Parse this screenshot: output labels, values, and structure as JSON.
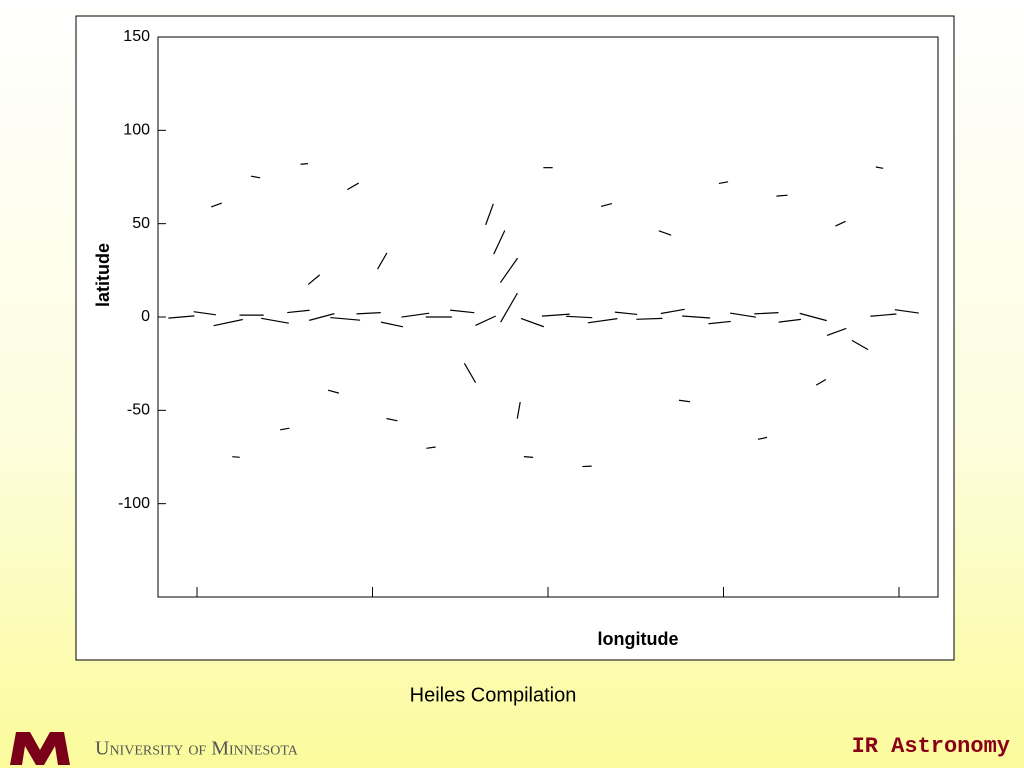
{
  "chart_data": {
    "type": "vector",
    "xlabel": "longitude",
    "ylabel": "latitude",
    "xlim": [
      -20,
      380
    ],
    "xticks": [
      0,
      90,
      180,
      270,
      360
    ],
    "ylim": [
      -150,
      150
    ],
    "yticks": [
      150,
      100,
      50,
      0,
      -50,
      -100
    ],
    "color": "#000000",
    "x": [
      -8,
      4,
      16,
      28,
      40,
      52,
      64,
      76,
      88,
      100,
      112,
      124,
      136,
      148,
      160,
      172,
      184,
      196,
      208,
      220,
      232,
      244,
      256,
      268,
      280,
      292,
      304,
      316,
      328,
      340,
      352,
      364,
      10,
      30,
      55,
      80,
      95,
      70,
      45,
      20,
      150,
      155,
      160,
      140,
      165,
      180,
      210,
      240,
      270,
      300,
      330,
      350,
      120,
      100,
      60,
      200,
      250,
      320,
      290,
      170
    ],
    "y": [
      0,
      2,
      -3,
      1,
      -2,
      3,
      0,
      -1,
      2,
      -4,
      1,
      0,
      3,
      -2,
      5,
      -3,
      1,
      0,
      -2,
      2,
      -1,
      3,
      0,
      -3,
      1,
      2,
      -2,
      0,
      -8,
      -15,
      1,
      3,
      60,
      75,
      82,
      70,
      30,
      -40,
      -60,
      -75,
      55,
      40,
      25,
      -30,
      -50,
      80,
      60,
      45,
      72,
      65,
      50,
      80,
      -70,
      -55,
      20,
      -80,
      -45,
      -35,
      -65,
      -75
    ],
    "angle": [
      5,
      -8,
      12,
      0,
      -10,
      6,
      15,
      -5,
      3,
      -12,
      8,
      0,
      -6,
      25,
      60,
      -20,
      4,
      -3,
      8,
      -6,
      2,
      10,
      -4,
      6,
      -9,
      3,
      7,
      -15,
      20,
      -30,
      5,
      -8,
      20,
      -10,
      5,
      30,
      60,
      -15,
      10,
      -5,
      70,
      65,
      55,
      -60,
      80,
      0,
      15,
      -20,
      10,
      5,
      25,
      -10,
      8,
      -12,
      40,
      3,
      -8,
      30,
      12,
      -5
    ],
    "length": [
      14,
      12,
      16,
      13,
      15,
      12,
      14,
      16,
      13,
      12,
      15,
      14,
      13,
      12,
      18,
      13,
      15,
      14,
      16,
      12,
      14,
      13,
      15,
      12,
      14,
      13,
      12,
      15,
      11,
      10,
      14,
      13,
      6,
      5,
      4,
      7,
      10,
      6,
      5,
      4,
      12,
      14,
      16,
      12,
      9,
      5,
      6,
      7,
      5,
      6,
      6,
      4,
      5,
      6,
      8,
      5,
      6,
      6,
      5,
      5
    ]
  },
  "caption": "Heiles Compilation",
  "footer": {
    "university": "University of Minnesota",
    "course": "IR Astronomy"
  }
}
